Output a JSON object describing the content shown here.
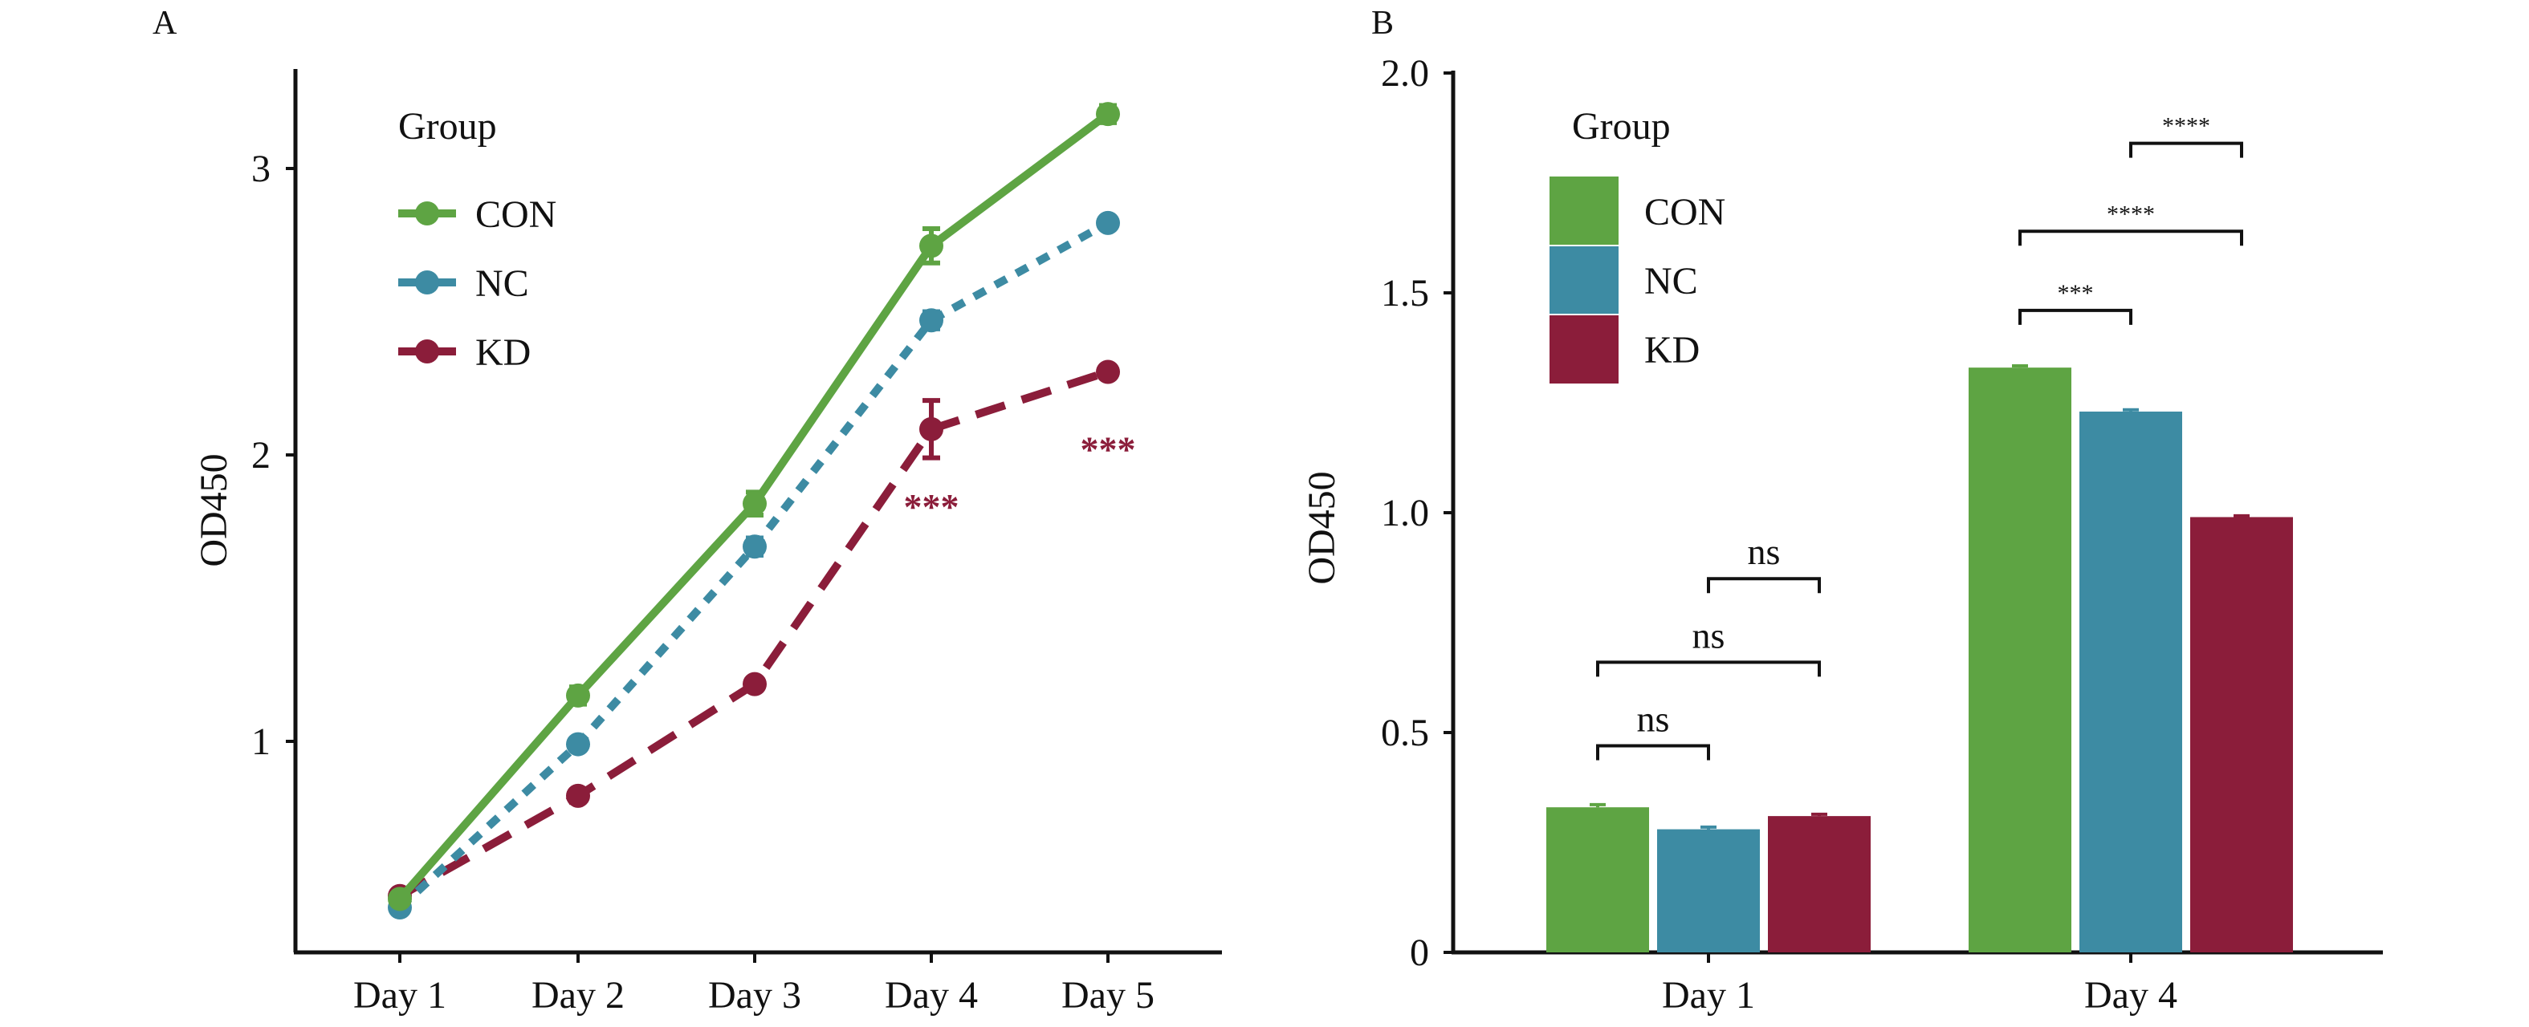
{
  "colors": {
    "CON": "#5ea443",
    "NC": "#3d8ba3",
    "KD": "#8b1d3a"
  },
  "chart_data": [
    {
      "panel": "A",
      "type": "line",
      "ylabel": "OD450",
      "xlabel": "",
      "ylim": [
        0.0,
        3.35
      ],
      "yticks": [
        1,
        2,
        3
      ],
      "x": [
        "Day 1",
        "Day 2",
        "Day 3",
        "Day 4",
        "Day 5"
      ],
      "legend_title": "Group",
      "legend_position": "top-left",
      "series": [
        {
          "name": "CON",
          "line_style": "solid",
          "values": [
            0.45,
            1.16,
            1.83,
            2.73,
            3.19
          ],
          "errors": [
            0.02,
            0.03,
            0.04,
            0.06,
            0.03
          ]
        },
        {
          "name": "NC",
          "line_style": "dotted",
          "values": [
            0.42,
            0.99,
            1.68,
            2.47,
            2.81
          ],
          "errors": [
            0.02,
            0.02,
            0.03,
            0.03,
            0.02
          ]
        },
        {
          "name": "KD",
          "line_style": "dashed",
          "values": [
            0.46,
            0.81,
            1.2,
            2.09,
            2.29
          ],
          "errors": [
            0.02,
            0.02,
            0.02,
            0.1,
            0.02
          ]
        }
      ],
      "annotations": [
        {
          "x": "Day 4",
          "series": "KD",
          "text": "***"
        },
        {
          "x": "Day 5",
          "series": "KD",
          "text": "***"
        }
      ]
    },
    {
      "panel": "B",
      "type": "bar",
      "ylabel": "OD450",
      "xlabel": "",
      "ylim": [
        0,
        2.0
      ],
      "yticks": [
        0,
        0.5,
        1.0,
        1.5,
        2.0
      ],
      "ytick_labels": [
        "0",
        "0.5",
        "1.0",
        "1.5",
        "2.0"
      ],
      "categories": [
        "Day 1",
        "Day 4"
      ],
      "legend_title": "Group",
      "legend_position": "top-left",
      "series": [
        {
          "name": "CON",
          "values": [
            0.33,
            1.33
          ],
          "errors": [
            0.006,
            0.004
          ]
        },
        {
          "name": "NC",
          "values": [
            0.28,
            1.23
          ],
          "errors": [
            0.005,
            0.004
          ]
        },
        {
          "name": "KD",
          "values": [
            0.31,
            0.99
          ],
          "errors": [
            0.004,
            0.003
          ]
        }
      ],
      "significance": [
        {
          "category": "Day 1",
          "from": "CON",
          "to": "NC",
          "text": "ns",
          "level": 0.47
        },
        {
          "category": "Day 1",
          "from": "CON",
          "to": "KD",
          "text": "ns",
          "level": 0.66
        },
        {
          "category": "Day 1",
          "from": "NC",
          "to": "KD",
          "text": "ns",
          "level": 0.85
        },
        {
          "category": "Day 4",
          "from": "CON",
          "to": "NC",
          "text": "***",
          "level": 1.46
        },
        {
          "category": "Day 4",
          "from": "CON",
          "to": "KD",
          "text": "****",
          "level": 1.64
        },
        {
          "category": "Day 4",
          "from": "NC",
          "to": "KD",
          "text": "****",
          "level": 1.84
        }
      ]
    }
  ]
}
